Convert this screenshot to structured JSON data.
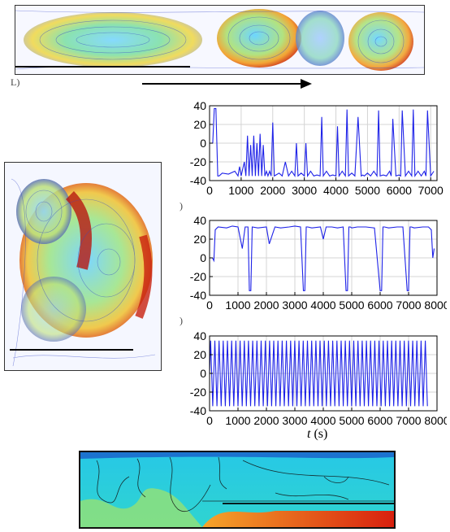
{
  "panel_labels": {
    "a": "L)",
    "b2": ")",
    "b3": ")"
  },
  "x_axis_title": {
    "var": "t",
    "unit": " (s)"
  },
  "chart_data": [
    {
      "type": "line",
      "ylim": [
        -40,
        40
      ],
      "yticks": [
        -40,
        -20,
        0,
        20,
        40
      ],
      "xlim": [
        0,
        7200
      ],
      "xticks": [
        0,
        1000,
        2000,
        3000,
        4000,
        5000,
        6000,
        7000
      ],
      "line_color": "#1e22e8",
      "pattern": "mostly near -35 with intermittent upward spikes",
      "series": [
        {
          "x": [
            0,
            100,
            150,
            200,
            260,
            300,
            400,
            600,
            800,
            900,
            950,
            1000,
            1100,
            1150,
            1200,
            1250,
            1300,
            1350,
            1400,
            1450,
            1500,
            1550,
            1600,
            1650,
            1700,
            1750,
            1800,
            1850,
            1900,
            1950,
            2000,
            2050,
            2100,
            2200,
            2300,
            2400,
            2500,
            2600,
            2700,
            2750,
            2800,
            2900,
            3000,
            3050,
            3100,
            3200,
            3300,
            3400,
            3500,
            3550,
            3600,
            3700,
            3800,
            3900,
            4000,
            4050,
            4100,
            4200,
            4300,
            4350,
            4400,
            4500,
            4600,
            4700,
            4800,
            4850,
            4900,
            5000,
            5100,
            5200,
            5300,
            5350,
            5400,
            5500,
            5600,
            5700,
            5750,
            5800,
            5900,
            6000,
            6050,
            6100,
            6200,
            6300,
            6400,
            6450,
            6500,
            6600,
            6700,
            6800,
            6850,
            6900,
            7000,
            7100
          ],
          "y": [
            0,
            0,
            37,
            37,
            -35,
            -35,
            -32,
            -33,
            -30,
            -35,
            -25,
            -35,
            -20,
            -35,
            8,
            -35,
            -2,
            -35,
            8,
            -35,
            0,
            -35,
            10,
            -35,
            -2,
            -35,
            -30,
            -35,
            -30,
            -35,
            22,
            -35,
            -34,
            -32,
            -35,
            -20,
            -35,
            -30,
            -35,
            0,
            -35,
            -32,
            -35,
            0,
            -35,
            -30,
            -35,
            -34,
            -35,
            28,
            -35,
            -30,
            -35,
            -34,
            -35,
            18,
            -35,
            -30,
            -35,
            36,
            -35,
            -32,
            -35,
            28,
            -35,
            -34,
            -35,
            -32,
            -35,
            -30,
            -35,
            35,
            -35,
            -34,
            -35,
            -30,
            -35,
            26,
            -35,
            -34,
            -35,
            35,
            -35,
            -30,
            -35,
            36,
            -35,
            -30,
            -35,
            -30,
            -35,
            35,
            -35,
            -30
          ]
        }
      ]
    },
    {
      "type": "line",
      "ylim": [
        -40,
        40
      ],
      "yticks": [
        -40,
        -20,
        0,
        20,
        40
      ],
      "xlim": [
        0,
        8000
      ],
      "xticks": [
        0,
        1000,
        2000,
        3000,
        4000,
        5000,
        6000,
        7000,
        8000
      ],
      "line_color": "#1e22e8",
      "pattern": "mostly near +33 with occasional downward drops",
      "series": [
        {
          "x": [
            0,
            100,
            150,
            200,
            300,
            600,
            800,
            1000,
            1150,
            1250,
            1350,
            1400,
            1450,
            1500,
            1700,
            2000,
            2100,
            2300,
            2500,
            2800,
            3000,
            3200,
            3300,
            3350,
            3400,
            3450,
            3600,
            3900,
            4000,
            4100,
            4300,
            4500,
            4700,
            4800,
            4850,
            4900,
            4950,
            5000,
            5200,
            5500,
            5800,
            6000,
            6050,
            6100,
            6150,
            6300,
            6600,
            6800,
            6950,
            7000,
            7050,
            7100,
            7200,
            7500,
            7700,
            7800,
            7850,
            7900
          ],
          "y": [
            0,
            0,
            -3,
            30,
            33,
            32,
            34,
            33,
            10,
            33,
            33,
            -35,
            -35,
            33,
            32,
            33,
            15,
            33,
            32,
            33,
            34,
            33,
            -35,
            -35,
            33,
            33,
            32,
            33,
            20,
            33,
            33,
            32,
            33,
            -35,
            -35,
            33,
            33,
            32,
            33,
            33,
            32,
            -35,
            -35,
            33,
            33,
            32,
            33,
            33,
            -35,
            -35,
            33,
            33,
            32,
            33,
            33,
            30,
            0,
            10
          ]
        }
      ]
    },
    {
      "type": "line",
      "ylim": [
        -40,
        40
      ],
      "yticks": [
        -40,
        -20,
        0,
        20,
        40
      ],
      "xlim": [
        0,
        8000
      ],
      "xticks": [
        0,
        1000,
        2000,
        3000,
        4000,
        5000,
        6000,
        7000,
        8000
      ],
      "line_color": "#1e22e8",
      "pattern": "regular oscillation between about -35 and +35",
      "series": [
        {
          "x_start": 0,
          "x_end": 7700,
          "y_start": 0,
          "y_high": 35,
          "y_low": -35,
          "approx_cycles": 52
        }
      ]
    }
  ]
}
